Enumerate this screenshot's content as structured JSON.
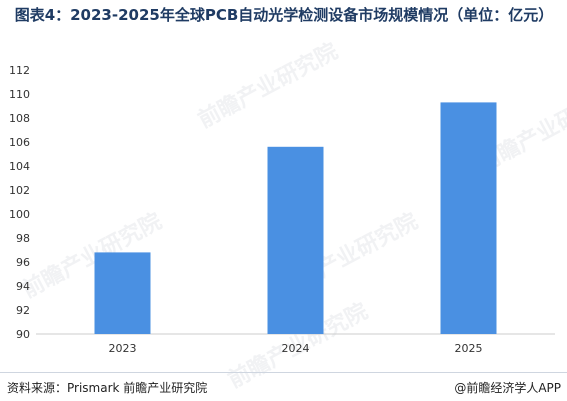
{
  "title": "图表4：2023-2025年全球PCB自动光学检测设备市场规模情况（单位：亿元）",
  "footer": {
    "source": "资料来源：Prismark  前瞻产业研究院",
    "brand": "@前瞻经济学人APP"
  },
  "watermark": "前瞻产业研究院",
  "colors": {
    "bar": "#4a90e2",
    "title": "#1f3b63",
    "axis": "#cccccc"
  },
  "chart_data": {
    "type": "bar",
    "categories": [
      "2023",
      "2024",
      "2025"
    ],
    "values": [
      96.8,
      105.6,
      109.3
    ],
    "title": "图表4：2023-2025年全球PCB自动光学检测设备市场规模情况（单位：亿元）",
    "xlabel": "",
    "ylabel": "",
    "ylim": [
      90,
      112
    ],
    "yticks": [
      90,
      92,
      94,
      96,
      98,
      100,
      102,
      104,
      106,
      108,
      110,
      112
    ],
    "grid": false,
    "legend": "none"
  }
}
